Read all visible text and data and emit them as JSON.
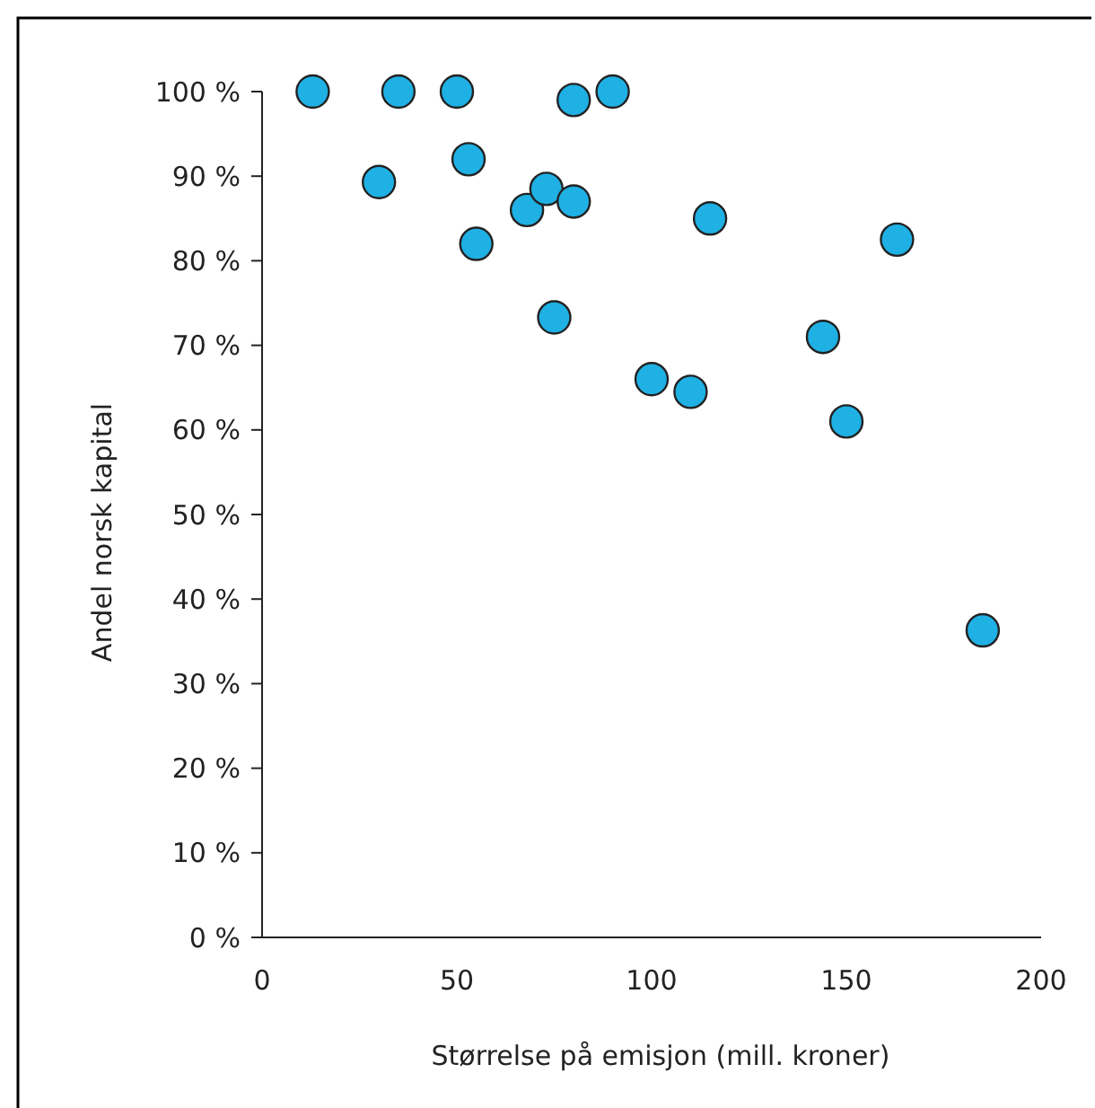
{
  "chart_data": {
    "type": "scatter",
    "xlabel": "Størrelse på emisjon (mill. kroner)",
    "ylabel": "Andel norsk kapital",
    "x": [
      13,
      35,
      50,
      80,
      90,
      30,
      53,
      55,
      68,
      73,
      80,
      75,
      115,
      163,
      144,
      100,
      110,
      150,
      185
    ],
    "values": [
      100,
      100,
      100,
      99,
      100,
      89.3,
      92,
      82,
      86,
      88.5,
      87,
      73.3,
      85,
      82.5,
      71,
      66,
      64.5,
      61,
      36.3
    ],
    "color": "#1fb0e4",
    "marker": "circle",
    "grid": false,
    "xlim": [
      0,
      200
    ],
    "xticks": [
      0,
      50,
      100,
      150,
      200
    ],
    "ylim": [
      0,
      100
    ],
    "yticks": [
      {
        "value": 0,
        "label": "0 %"
      },
      {
        "value": 10,
        "label": "10 %"
      },
      {
        "value": 20,
        "label": "20 %"
      },
      {
        "value": 30,
        "label": "30 %"
      },
      {
        "value": 40,
        "label": "40 %"
      },
      {
        "value": 50,
        "label": "50 %"
      },
      {
        "value": 60,
        "label": "60 %"
      },
      {
        "value": 70,
        "label": "70 %"
      },
      {
        "value": 80,
        "label": "80 %"
      },
      {
        "value": 90,
        "label": "90 %"
      },
      {
        "value": 100,
        "label": "100 %"
      }
    ]
  }
}
